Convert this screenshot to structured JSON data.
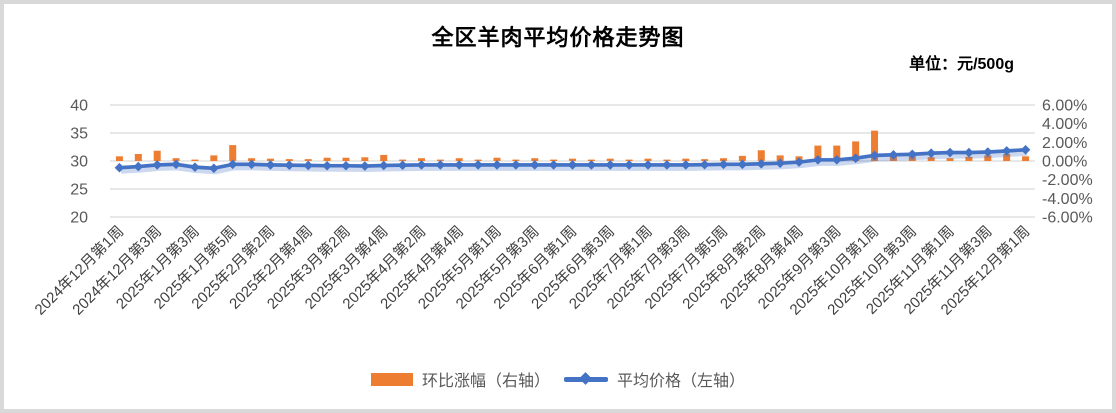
{
  "title": "全区羊肉平均价格走势图",
  "unit_label": "单位：元/500g",
  "colors": {
    "bar": "#ED7D31",
    "line": "#4472C4",
    "grid": "#D9D9D9",
    "axis_text": "#595959",
    "x_label_text": "#404040",
    "title_text": "#000000",
    "frame_border": "#D9D9D9"
  },
  "legend": [
    {
      "label": "环比涨幅（右轴）",
      "swatch": "bar"
    },
    {
      "label": "平均价格（左轴）",
      "swatch": "line-diamond"
    }
  ],
  "chart_data": {
    "type": "combo",
    "title": "全区羊肉平均价格走势图",
    "unit": "元/500g",
    "grid": "horizontal",
    "legend_position": "bottom",
    "n_points": 49,
    "x_tick_every": 2,
    "x_tick_labels": [
      "2024年12月第1周",
      "2024年12月第3周",
      "2025年1月第3周",
      "2025年1月第5周",
      "2025年2月第2周",
      "2025年2月第4周",
      "2025年3月第2周",
      "2025年3月第4周",
      "2025年4月第2周",
      "2025年4月第4周",
      "2025年5月第1周",
      "2025年5月第3周",
      "2025年6月第1周",
      "2025年6月第3周",
      "2025年7月第1周",
      "2025年7月第3周",
      "2025年7月第5周",
      "2025年8月第2周",
      "2025年8月第4周",
      "2025年9月第3周",
      "2025年10月第1周",
      "2025年10月第3周",
      "2025年11月第1周",
      "2025年11月第3周",
      "2025年12月第1周"
    ],
    "left_axis": {
      "min": 20,
      "max": 40,
      "ticks": [
        40,
        35,
        30,
        25,
        20
      ]
    },
    "right_axis": {
      "min": -6,
      "max": 6,
      "ticks": [
        6,
        4,
        2,
        0,
        -2,
        -4,
        -6
      ],
      "format": "0.00%"
    },
    "series": [
      {
        "name": "环比涨幅（右轴）",
        "type": "bar",
        "axis": "right",
        "color": "#ED7D31",
        "unit": "%",
        "values": [
          0.5,
          0.75,
          1.1,
          0.3,
          0.15,
          0.6,
          1.7,
          0.3,
          0.25,
          0.2,
          0.2,
          0.35,
          0.35,
          0.4,
          0.65,
          0.15,
          0.3,
          0.15,
          0.3,
          0.15,
          0.35,
          0.15,
          0.3,
          0.15,
          0.25,
          0.15,
          0.25,
          0.15,
          0.25,
          0.15,
          0.25,
          0.2,
          0.3,
          0.55,
          1.15,
          0.6,
          0.5,
          1.65,
          1.65,
          2.1,
          3.25,
          0.5,
          0.5,
          0.4,
          0.3,
          0.45,
          0.6,
          0.75,
          0.5
        ]
      },
      {
        "name": "平均价格（左轴）",
        "type": "line",
        "axis": "left",
        "color": "#4472C4",
        "marker": "diamond",
        "unit": "元/500g",
        "values": [
          28.8,
          29.0,
          29.3,
          29.4,
          28.9,
          28.7,
          29.4,
          29.4,
          29.3,
          29.25,
          29.2,
          29.15,
          29.15,
          29.1,
          29.2,
          29.25,
          29.3,
          29.3,
          29.3,
          29.3,
          29.3,
          29.3,
          29.3,
          29.3,
          29.3,
          29.3,
          29.3,
          29.3,
          29.3,
          29.3,
          29.3,
          29.35,
          29.4,
          29.4,
          29.5,
          29.6,
          29.8,
          30.2,
          30.2,
          30.5,
          31.0,
          31.1,
          31.2,
          31.4,
          31.5,
          31.5,
          31.6,
          31.8,
          32.0
        ]
      }
    ]
  }
}
